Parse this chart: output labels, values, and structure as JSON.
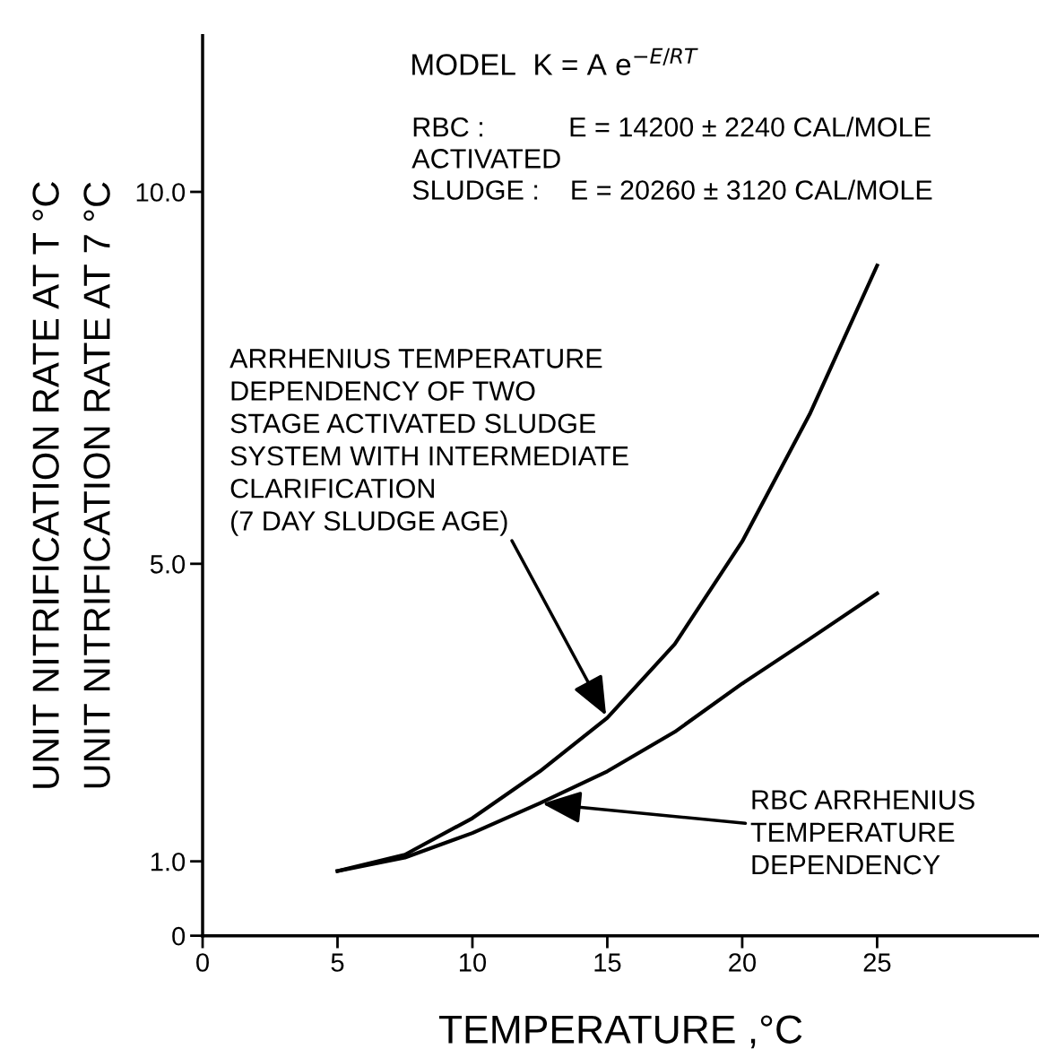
{
  "chart_data": {
    "type": "line",
    "title": "MODEL  K = A e$^{−E/RT}$",
    "xlabel": "TEMPERATURE ,°C",
    "ylabel": "UNIT NITRIFICATION RATE AT T °C\nUNIT NITRIFICATION RATE AT 7 °C",
    "x": [
      5,
      7.5,
      10,
      12.5,
      15,
      17.5,
      20,
      22.5,
      25
    ],
    "series": [
      {
        "color": "#000000",
        "values": [
          0.87,
          1.09,
          1.58,
          2.21,
          2.93,
          3.92,
          5.3,
          7.01,
          9.01
        ]
      },
      {
        "color": "#000000",
        "values": [
          0.87,
          1.05,
          1.38,
          1.78,
          2.21,
          2.74,
          3.39,
          3.99,
          4.6
        ]
      }
    ],
    "xlim": [
      0,
      31
    ],
    "xticks": [
      0,
      5,
      10,
      15,
      20,
      25
    ],
    "ylim": [
      0,
      12.1
    ],
    "yticks": [
      0,
      {
        "value": 1,
        "label": "1.0"
      },
      {
        "value": 5,
        "label": "5.0"
      },
      {
        "value": 10,
        "label": "10.0"
      }
    ],
    "annotations": [
      "RBC :           E = 14200 ± 2240 CAL/MOLE\nACTIVATED\nSLUDGE :    E = 20260 ± 3120 CAL/MOLE",
      {
        "text": "ARRHENIUS TEMPERATURE\nDEPENDENCY OF TWO\nSTAGE ACTIVATED SLUDGE\nSYSTEM WITH INTERMEDIATE\nCLARIFICATION\n(7 DAY SLUDGE AGE)",
        "x": 15,
        "y": 2.93
      },
      {
        "text": "RBC ARRHENIUS\nTEMPERATURE\nDEPENDENCY",
        "x": 12.5,
        "y": 1.78
      }
    ],
    "grid": false,
    "legend": false,
    "marker": "none",
    "line_style": "solid"
  }
}
